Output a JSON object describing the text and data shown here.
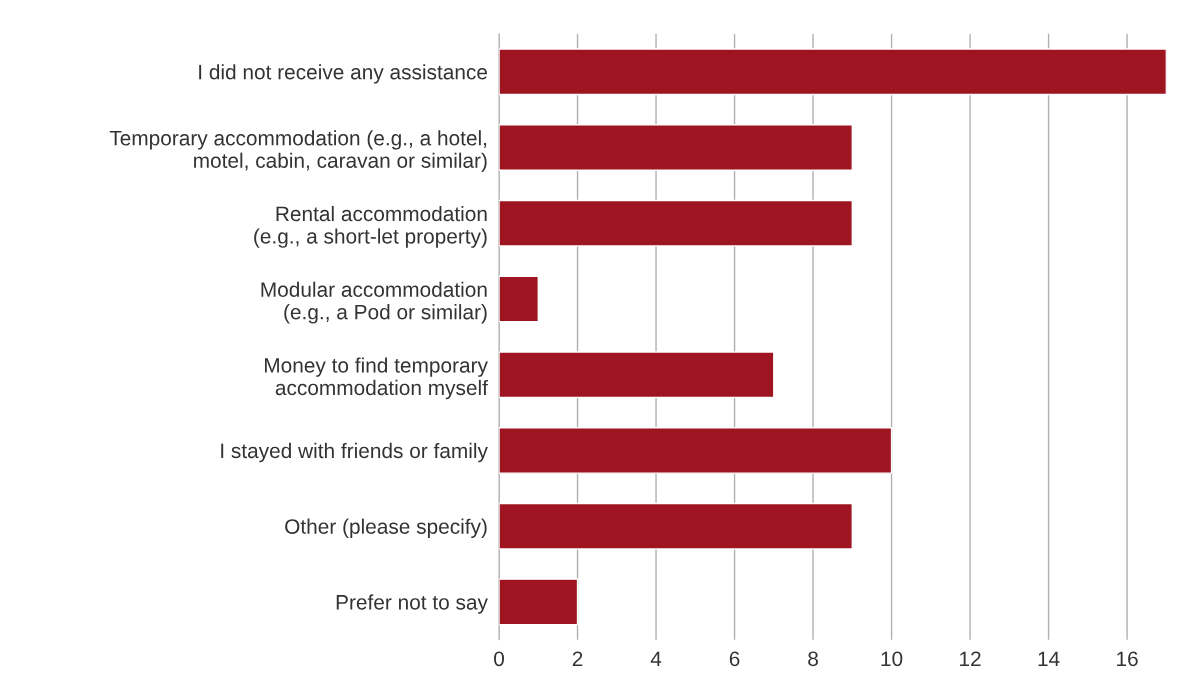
{
  "chart_data": {
    "type": "bar",
    "orientation": "horizontal",
    "categories": [
      "I did not receive any assistance",
      "Temporary accommodation (e.g., a hotel,\nmotel, cabin, caravan or similar)",
      "Rental accommodation\n(e.g., a short-let property)",
      "Modular accommodation\n(e.g., a Pod or similar)",
      "Money to find temporary\naccommodation myself",
      "I stayed with friends or family",
      "Other (please specify)",
      "Prefer not to say"
    ],
    "values": [
      17,
      9,
      9,
      1,
      7,
      10,
      9,
      2
    ],
    "color": "#9e1421",
    "xlim": [
      0,
      17
    ],
    "xticks": [
      0,
      2,
      4,
      6,
      8,
      10,
      12,
      14,
      16
    ],
    "grid": "x",
    "legend": false
  }
}
